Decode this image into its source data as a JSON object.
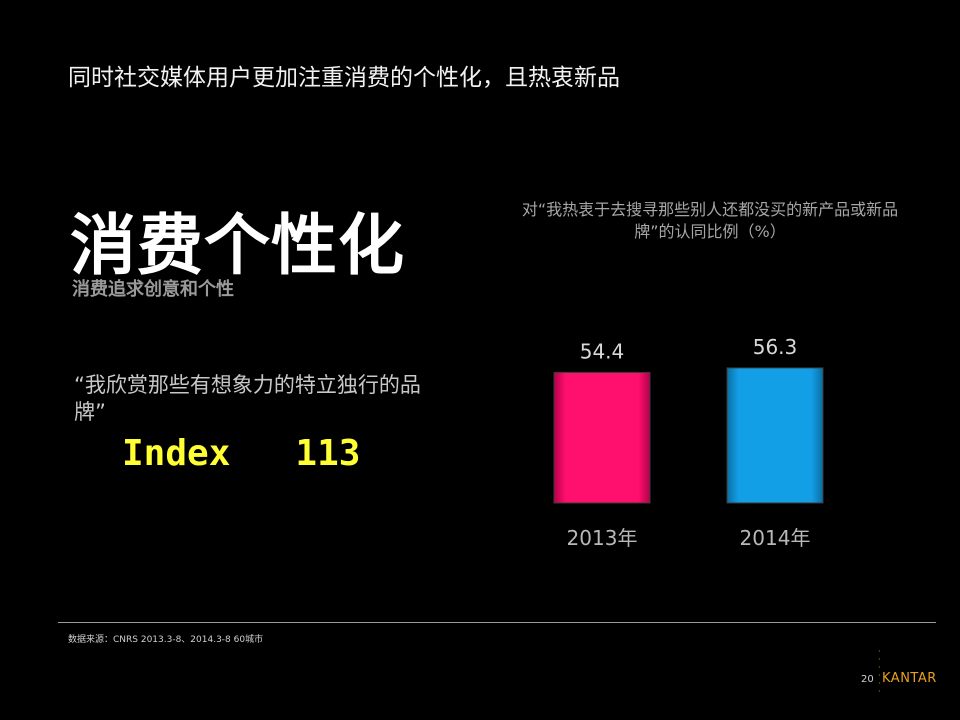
{
  "slide": {
    "title": "同时社交媒体用户更加注重消费的个性化，且热衷新品",
    "heading": "消费个性化",
    "subheading": "消费追求创意和个性",
    "quote": "“我欣赏那些有想象力的特立独行的品牌”",
    "index_label": "Index",
    "index_value": "113",
    "source": "数据来源：CNRS 2013.3-8、2014.3-8  60城市",
    "page_number": "20",
    "brand": "KANTAR"
  },
  "chart_data": {
    "type": "bar",
    "title": "对“我热衷于去搜寻那些别人还都没买的新产品或新品牌”的认同比例（%）",
    "categories": [
      "2013年",
      "2014年"
    ],
    "values": [
      54.4,
      56.3
    ],
    "value_labels": [
      "54.4",
      "56.3"
    ],
    "colors": [
      "#ff0f6e",
      "#139fe6"
    ],
    "xlabel": "",
    "ylabel": "",
    "grid": false,
    "legend": "none"
  }
}
